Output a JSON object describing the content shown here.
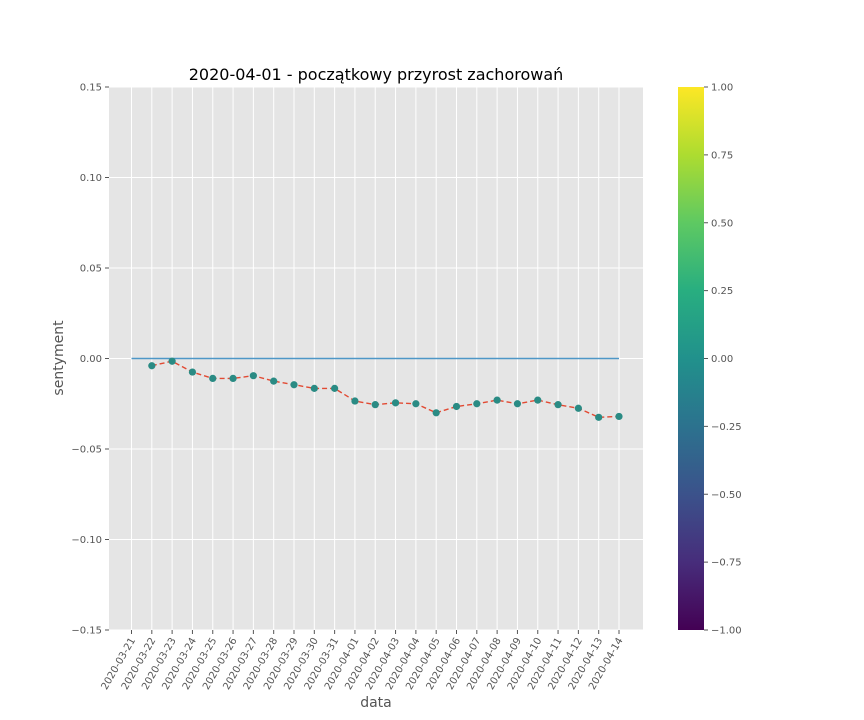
{
  "chart_data": {
    "type": "line",
    "title": "2020-04-01 - początkowy przyrost zachorowań",
    "xlabel": "data",
    "ylabel": "sentyment",
    "ylim": [
      -0.15,
      0.15
    ],
    "yticks": [
      "0.15",
      "0.10",
      "0.05",
      "0.00",
      "−0.05",
      "−0.10",
      "−0.15"
    ],
    "ytick_values": [
      0.15,
      0.1,
      0.05,
      0.0,
      -0.05,
      -0.1,
      -0.15
    ],
    "categories": [
      "2020-03-21",
      "2020-03-22",
      "2020-03-23",
      "2020-03-24",
      "2020-03-25",
      "2020-03-26",
      "2020-03-27",
      "2020-03-28",
      "2020-03-29",
      "2020-03-30",
      "2020-03-31",
      "2020-04-01",
      "2020-04-02",
      "2020-04-03",
      "2020-04-04",
      "2020-04-05",
      "2020-04-06",
      "2020-04-07",
      "2020-04-08",
      "2020-04-09",
      "2020-04-10",
      "2020-04-11",
      "2020-04-12",
      "2020-04-13",
      "2020-04-14"
    ],
    "series": [
      {
        "style": "dashed line with markers",
        "line_color": "#e24a33",
        "marker_color": "#2a8b84",
        "values": [
          null,
          -0.004,
          -0.0015,
          -0.0075,
          -0.011,
          -0.011,
          -0.0095,
          -0.0125,
          -0.0145,
          -0.0165,
          -0.0165,
          -0.0235,
          -0.0255,
          -0.0245,
          -0.025,
          -0.03,
          -0.0265,
          -0.025,
          -0.023,
          -0.025,
          -0.023,
          -0.0255,
          -0.0275,
          -0.0325,
          -0.032
        ]
      }
    ],
    "reference_line": {
      "y": 0.0,
      "color": "#4e97c7"
    },
    "colorbar": {
      "colormap": "viridis",
      "range": [
        -1.0,
        1.0
      ],
      "ticks": [
        "1.00",
        "0.75",
        "0.50",
        "0.25",
        "0.00",
        "−0.25",
        "−0.50",
        "−0.75",
        "−1.00"
      ],
      "tick_values": [
        1.0,
        0.75,
        0.5,
        0.25,
        0.0,
        -0.25,
        -0.5,
        -0.75,
        -1.0
      ]
    },
    "grid": true,
    "background": "#e5e5e5"
  }
}
